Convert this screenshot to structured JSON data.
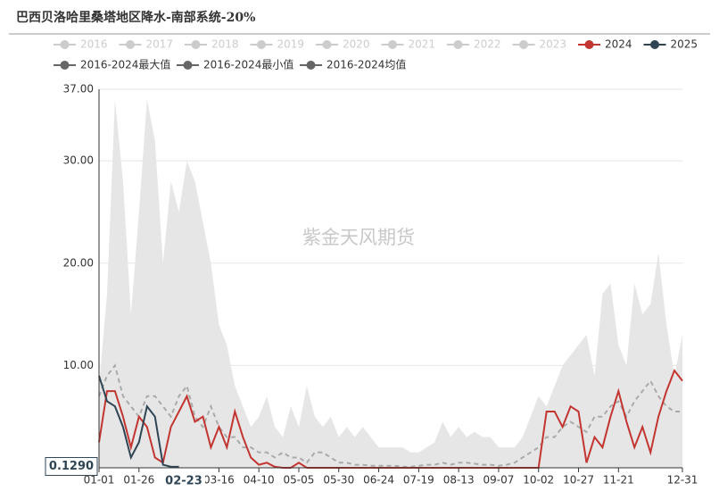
{
  "chart_data": {
    "type": "line",
    "title": "巴西贝洛哈里桑塔地区降水-南部系统-20%",
    "watermark": "紫金天风期货",
    "x": [
      0,
      5,
      10,
      15,
      20,
      25,
      30,
      35,
      40,
      45,
      50,
      55,
      60,
      65,
      70,
      75,
      80,
      85,
      90,
      95,
      100,
      105,
      110,
      115,
      120,
      125,
      130,
      135,
      140,
      145,
      150,
      155,
      160,
      165,
      170,
      175,
      180,
      185,
      190,
      195,
      200,
      205,
      210,
      215,
      220,
      225,
      230,
      235,
      240,
      245,
      250,
      255,
      260,
      265,
      270,
      275,
      280,
      285,
      290,
      295,
      300,
      305,
      310,
      315,
      320,
      325,
      330,
      335,
      340,
      345,
      350,
      355,
      360,
      365
    ],
    "xlim": [
      0,
      365
    ],
    "xticks": [
      {
        "value": 0,
        "label": "01-01"
      },
      {
        "value": 25,
        "label": "01-26"
      },
      {
        "value": 75,
        "label": "03-16"
      },
      {
        "value": 100,
        "label": "04-10"
      },
      {
        "value": 125,
        "label": "05-05"
      },
      {
        "value": 150,
        "label": "05-30"
      },
      {
        "value": 175,
        "label": "06-24"
      },
      {
        "value": 200,
        "label": "07-19"
      },
      {
        "value": 225,
        "label": "08-13"
      },
      {
        "value": 250,
        "label": "09-07"
      },
      {
        "value": 275,
        "label": "10-02"
      },
      {
        "value": 300,
        "label": "10-27"
      },
      {
        "value": 325,
        "label": "11-21"
      },
      {
        "value": 365,
        "label": "12-31"
      }
    ],
    "ylim": [
      0,
      37
    ],
    "yticks": [
      {
        "value": 10,
        "label": "10.00"
      },
      {
        "value": 20,
        "label": "20.00"
      },
      {
        "value": 30,
        "label": "30.00"
      },
      {
        "value": 37,
        "label": "37.00"
      }
    ],
    "grid": true,
    "pointer": {
      "x": {
        "value": 53,
        "label": "02-23"
      },
      "y": {
        "value": 0.129,
        "label": "0.1290"
      }
    },
    "series": [
      {
        "name": "2016",
        "color": "#cccccc",
        "visible": false
      },
      {
        "name": "2017",
        "color": "#cccccc",
        "visible": false
      },
      {
        "name": "2018",
        "color": "#cccccc",
        "visible": false
      },
      {
        "name": "2019",
        "color": "#cccccc",
        "visible": false
      },
      {
        "name": "2020",
        "color": "#cccccc",
        "visible": false
      },
      {
        "name": "2021",
        "color": "#cccccc",
        "visible": false
      },
      {
        "name": "2022",
        "color": "#cccccc",
        "visible": false
      },
      {
        "name": "2023",
        "color": "#cccccc",
        "visible": false
      },
      {
        "name": "2024",
        "color": "#c23531",
        "visible": true,
        "values": [
          2.5,
          7.5,
          7.5,
          5,
          2,
          5,
          4,
          1,
          0.5,
          4,
          5.5,
          7,
          4.5,
          5,
          2,
          4,
          2,
          5.5,
          3,
          1,
          0.3,
          0.5,
          0.1,
          0,
          0,
          0.5,
          0,
          0,
          0,
          0,
          0,
          0,
          0,
          0,
          0,
          0,
          0,
          0,
          0,
          0,
          0,
          0,
          0,
          0,
          0,
          0,
          0,
          0,
          0,
          0,
          0,
          0,
          0,
          0,
          0,
          0,
          5.5,
          5.5,
          4,
          6,
          5.5,
          0.5,
          3,
          2,
          5,
          7.5,
          4.5,
          2,
          4,
          1.5,
          5,
          7.5,
          9.5,
          8.5
        ]
      },
      {
        "name": "2025",
        "color": "#2f4554",
        "visible": true,
        "values": [
          9,
          6.5,
          6,
          4,
          1,
          2.5,
          6,
          5,
          0.3,
          0.1,
          0.1,
          null,
          null,
          null,
          null,
          null,
          null,
          null,
          null,
          null,
          null,
          null,
          null,
          null,
          null,
          null,
          null,
          null,
          null,
          null,
          null,
          null,
          null,
          null,
          null,
          null,
          null,
          null,
          null,
          null,
          null,
          null,
          null,
          null,
          null,
          null,
          null,
          null,
          null,
          null,
          null,
          null,
          null,
          null,
          null,
          null,
          null,
          null,
          null,
          null,
          null,
          null,
          null,
          null,
          null,
          null,
          null,
          null,
          null,
          null,
          null,
          null,
          null,
          null
        ]
      },
      {
        "name": "2016-2024最大值",
        "color": "#666666",
        "visible": true,
        "style": "band",
        "fill": "#e6e6e6",
        "values": [
          8,
          17,
          36,
          28,
          15,
          25,
          36,
          32,
          20,
          28,
          25,
          30,
          28,
          24,
          20,
          14,
          12,
          8,
          6,
          4,
          5,
          7,
          4,
          3,
          6,
          4,
          8,
          5,
          4,
          5,
          3,
          4,
          3,
          4,
          3,
          2,
          2,
          2,
          2,
          1.5,
          1.5,
          2,
          2.5,
          4.5,
          3,
          4,
          3,
          3.5,
          3,
          3,
          2,
          2,
          2,
          3,
          5,
          7,
          6,
          8,
          10,
          11,
          12,
          13,
          9,
          17,
          18,
          12,
          10,
          18,
          15,
          16,
          21,
          14,
          9,
          13
        ]
      },
      {
        "name": "2016-2024最小值",
        "color": "#666666",
        "visible": true,
        "style": "band-floor",
        "fill": "#e6e6e6",
        "values": [
          0.3,
          0.5,
          0.5,
          0.2,
          0.3,
          0.2,
          0,
          0,
          0,
          0,
          0,
          0,
          0,
          0,
          0,
          0,
          0,
          0,
          0,
          0,
          0,
          0,
          0,
          0,
          0,
          0,
          0,
          0,
          0,
          0,
          0,
          0,
          0,
          0,
          0,
          0,
          0,
          0,
          0,
          0,
          0,
          0,
          0,
          0,
          0,
          0,
          0,
          0,
          0,
          0,
          0,
          0,
          0,
          0,
          0,
          0,
          0,
          0,
          0,
          0,
          0,
          0,
          0,
          0,
          0,
          0,
          0,
          0,
          0,
          0,
          0,
          0,
          0,
          0
        ]
      },
      {
        "name": "2016-2024均值",
        "color": "#666666",
        "visible": true,
        "style": "dashed",
        "line_color": "#aaaaaa",
        "values": [
          7,
          9,
          10,
          7,
          6,
          5,
          7,
          7,
          6,
          5,
          7,
          8,
          5,
          4,
          6,
          4,
          3,
          3,
          2,
          2,
          1.5,
          1.5,
          1,
          1.5,
          1,
          1,
          0.5,
          1.5,
          1.5,
          1,
          0.5,
          0.5,
          0.3,
          0.3,
          0.2,
          0.2,
          0.2,
          0.2,
          0.1,
          0.1,
          0.2,
          0.3,
          0.3,
          0.5,
          0.3,
          0.5,
          0.5,
          0.4,
          0.3,
          0.3,
          0.2,
          0.3,
          0.5,
          1,
          1.5,
          2,
          3,
          3,
          4,
          4.5,
          4,
          3.5,
          5,
          5,
          6,
          6.5,
          5,
          6.5,
          7.5,
          8.5,
          7,
          6,
          5.5,
          5.5
        ]
      }
    ]
  }
}
